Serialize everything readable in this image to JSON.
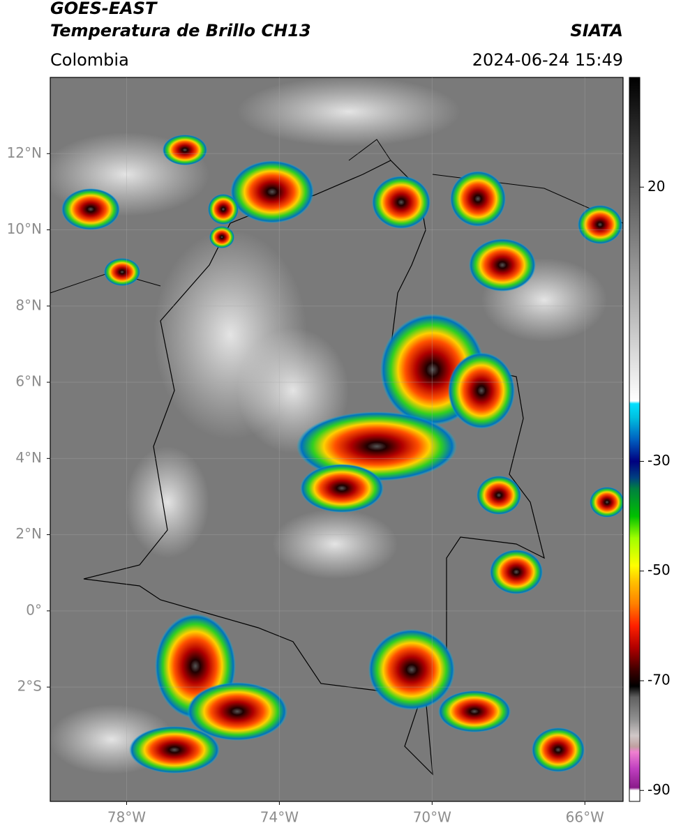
{
  "header": {
    "title1": "GOES-EAST",
    "title2": "Temperatura de Brillo CH13",
    "credit": "SIATA",
    "region": "Colombia",
    "datetime": "2024-06-24 15:49"
  },
  "map": {
    "xlim": [
      -80,
      -65
    ],
    "ylim": [
      -5,
      14
    ],
    "grid": true,
    "xticks": [
      {
        "value": -78,
        "label": "78°W"
      },
      {
        "value": -74,
        "label": "74°W"
      },
      {
        "value": -70,
        "label": "70°W"
      },
      {
        "value": -66,
        "label": "66°W"
      }
    ],
    "yticks": [
      {
        "value": 12,
        "label": "12°N"
      },
      {
        "value": 10,
        "label": "10°N"
      },
      {
        "value": 8,
        "label": "8°N"
      },
      {
        "value": 6,
        "label": "6°N"
      },
      {
        "value": 4,
        "label": "4°N"
      },
      {
        "value": 2,
        "label": "2°N"
      },
      {
        "value": 0,
        "label": "0°"
      },
      {
        "value": -2,
        "label": "2°S"
      }
    ]
  },
  "colorbar": {
    "lim": [
      -92,
      40
    ],
    "ticks": [
      20,
      -30,
      -50,
      -70,
      -90
    ],
    "colormap": [
      {
        "value": -92,
        "color": "#ffffff"
      },
      {
        "value": -90,
        "color": "#ffffff"
      },
      {
        "value": -89.5,
        "color": "#8a1a8a"
      },
      {
        "value": -86,
        "color": "#c040c0"
      },
      {
        "value": -83,
        "color": "#f080d0"
      },
      {
        "value": -82,
        "color": "#c0a0a0"
      },
      {
        "value": -80,
        "color": "#d0c8c8"
      },
      {
        "value": -77,
        "color": "#909090"
      },
      {
        "value": -73,
        "color": "#606060"
      },
      {
        "value": -71,
        "color": "#000000"
      },
      {
        "value": -68,
        "color": "#400000"
      },
      {
        "value": -64,
        "color": "#b00000"
      },
      {
        "value": -60,
        "color": "#ff2000"
      },
      {
        "value": -56,
        "color": "#ff8000"
      },
      {
        "value": -52,
        "color": "#ffc000"
      },
      {
        "value": -49,
        "color": "#ffff00"
      },
      {
        "value": -44,
        "color": "#a0ff00"
      },
      {
        "value": -40,
        "color": "#00c000"
      },
      {
        "value": -35,
        "color": "#008040"
      },
      {
        "value": -33,
        "color": "#004080"
      },
      {
        "value": -30,
        "color": "#000080"
      },
      {
        "value": -26,
        "color": "#0060c0"
      },
      {
        "value": -22,
        "color": "#00c0e0"
      },
      {
        "value": -19.5,
        "color": "#00e0ff"
      },
      {
        "value": -19,
        "color": "#ffffff"
      },
      {
        "value": 40,
        "color": "#000000"
      }
    ]
  }
}
